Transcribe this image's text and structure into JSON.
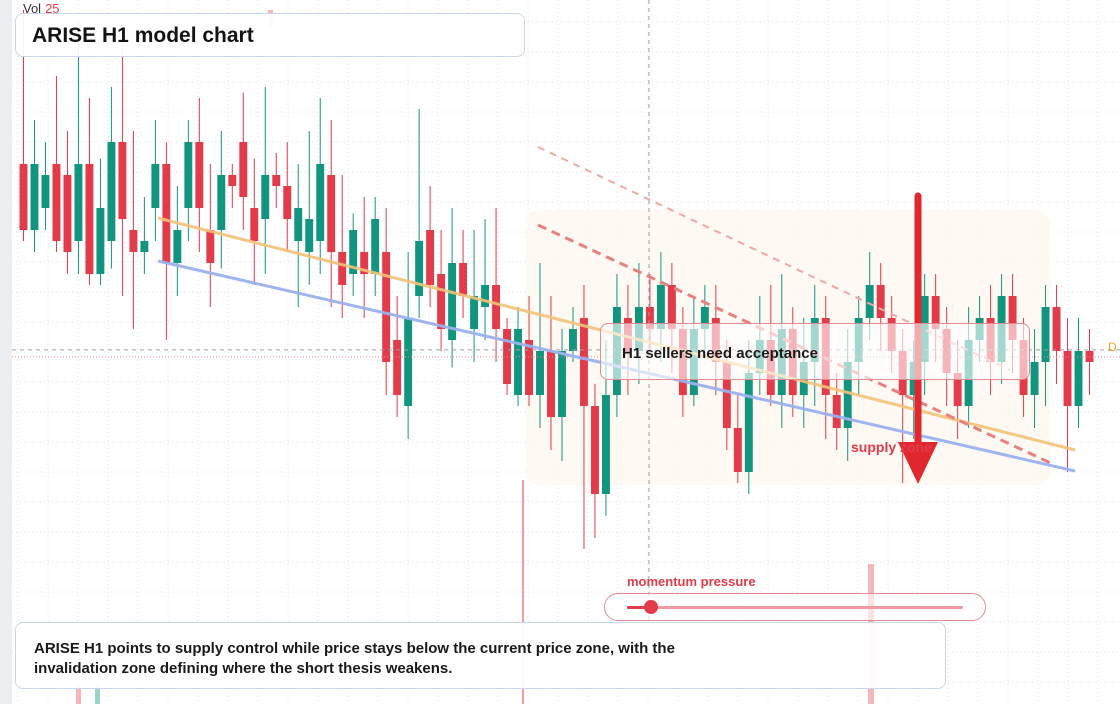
{
  "header": {
    "vol_label": "Vol",
    "vol_value": "25"
  },
  "title": "ARISE H1 model chart",
  "callout": {
    "text": "H1 sellers need acceptance"
  },
  "zone_label": "supply zone",
  "momentum": {
    "label": "momentum pressure",
    "level": 0.07
  },
  "summary": "ARISE H1 points to supply control while price stays below the current price zone, with the invalidation zone defining where the short thesis weakens.",
  "price_tag": "D",
  "colors": {
    "up": "#12957e",
    "down": "#e23b4a",
    "trend_orange": "#f4c27a",
    "trend_blue": "#9ab2ee",
    "arrow": "#e0262e",
    "grid": "#e3e6ec"
  },
  "chart_data": {
    "type": "candlestick",
    "y_range": [
      0,
      100
    ],
    "current_price_level": 38.2,
    "series": [
      {
        "o": 72,
        "c": 60,
        "h": 100,
        "l": 58
      },
      {
        "o": 60,
        "c": 72,
        "h": 80,
        "l": 56
      },
      {
        "o": 64,
        "c": 70,
        "h": 76,
        "l": 60
      },
      {
        "o": 72,
        "c": 58,
        "h": 88,
        "l": 56
      },
      {
        "o": 70,
        "c": 56,
        "h": 78,
        "l": 52
      },
      {
        "o": 58,
        "c": 72,
        "h": 98,
        "l": 52
      },
      {
        "o": 72,
        "c": 52,
        "h": 84,
        "l": 50
      },
      {
        "o": 52,
        "c": 64,
        "h": 73,
        "l": 50
      },
      {
        "o": 58,
        "c": 76,
        "h": 86,
        "l": 53
      },
      {
        "o": 76,
        "c": 62,
        "h": 94,
        "l": 48
      },
      {
        "o": 60,
        "c": 56,
        "h": 78,
        "l": 42
      },
      {
        "o": 56,
        "c": 58,
        "h": 66,
        "l": 52
      },
      {
        "o": 64,
        "c": 72,
        "h": 80,
        "l": 58
      },
      {
        "o": 72,
        "c": 54,
        "h": 76,
        "l": 40
      },
      {
        "o": 54,
        "c": 60,
        "h": 68,
        "l": 48
      },
      {
        "o": 64,
        "c": 76,
        "h": 80,
        "l": 58
      },
      {
        "o": 76,
        "c": 64,
        "h": 84,
        "l": 56
      },
      {
        "o": 60,
        "c": 54,
        "h": 72,
        "l": 46
      },
      {
        "o": 60,
        "c": 70,
        "h": 78,
        "l": 53
      },
      {
        "o": 70,
        "c": 68,
        "h": 72,
        "l": 64
      },
      {
        "o": 76,
        "c": 66,
        "h": 85,
        "l": 60
      },
      {
        "o": 64,
        "c": 58,
        "h": 73,
        "l": 50
      },
      {
        "o": 62,
        "c": 70,
        "h": 86,
        "l": 52
      },
      {
        "o": 70,
        "c": 68,
        "h": 74,
        "l": 64
      },
      {
        "o": 68,
        "c": 62,
        "h": 76,
        "l": 56
      },
      {
        "o": 58,
        "c": 64,
        "h": 72,
        "l": 46
      },
      {
        "o": 56,
        "c": 62,
        "h": 78,
        "l": 50
      },
      {
        "o": 58,
        "c": 72,
        "h": 84,
        "l": 52
      },
      {
        "o": 70,
        "c": 56,
        "h": 80,
        "l": 46
      },
      {
        "o": 56,
        "c": 50,
        "h": 70,
        "l": 44
      },
      {
        "o": 52,
        "c": 60,
        "h": 63,
        "l": 48
      },
      {
        "o": 56,
        "c": 52,
        "h": 66,
        "l": 44
      },
      {
        "o": 52,
        "c": 62,
        "h": 66,
        "l": 48
      },
      {
        "o": 56,
        "c": 36,
        "h": 64,
        "l": 30
      },
      {
        "o": 40,
        "c": 30,
        "h": 48,
        "l": 26
      },
      {
        "o": 28,
        "c": 44,
        "h": 56,
        "l": 22
      },
      {
        "o": 48,
        "c": 58,
        "h": 82,
        "l": 44
      },
      {
        "o": 60,
        "c": 50,
        "h": 68,
        "l": 46
      },
      {
        "o": 52,
        "c": 42,
        "h": 60,
        "l": 38
      },
      {
        "o": 40,
        "c": 54,
        "h": 64,
        "l": 35
      },
      {
        "o": 54,
        "c": 48,
        "h": 60,
        "l": 44
      },
      {
        "o": 42,
        "c": 48,
        "h": 60,
        "l": 36
      },
      {
        "o": 46,
        "c": 50,
        "h": 62,
        "l": 40
      },
      {
        "o": 50,
        "c": 42,
        "h": 64,
        "l": 36
      },
      {
        "o": 42,
        "c": 32,
        "h": 44,
        "l": 30
      },
      {
        "o": 30,
        "c": 42,
        "h": 46,
        "l": 28
      },
      {
        "o": 40,
        "c": 30,
        "h": 48,
        "l": 28
      },
      {
        "o": 30,
        "c": 38,
        "h": 54,
        "l": 24
      },
      {
        "o": 38,
        "c": 26,
        "h": 48,
        "l": 20
      },
      {
        "o": 26,
        "c": 38,
        "h": 42,
        "l": 18
      },
      {
        "o": 38,
        "c": 42,
        "h": 46,
        "l": 36
      },
      {
        "o": 44,
        "c": 28,
        "h": 50,
        "l": 2
      },
      {
        "o": 28,
        "c": 12,
        "h": 32,
        "l": 4
      },
      {
        "o": 12,
        "c": 30,
        "h": 40,
        "l": 8
      },
      {
        "o": 30,
        "c": 46,
        "h": 52,
        "l": 26
      },
      {
        "o": 44,
        "c": 38,
        "h": 50,
        "l": 30
      },
      {
        "o": 38,
        "c": 46,
        "h": 54,
        "l": 32
      },
      {
        "o": 46,
        "c": 42,
        "h": 52,
        "l": 38
      },
      {
        "o": 42,
        "c": 50,
        "h": 56,
        "l": 36
      },
      {
        "o": 50,
        "c": 42,
        "h": 54,
        "l": 34
      },
      {
        "o": 42,
        "c": 30,
        "h": 46,
        "l": 26
      },
      {
        "o": 30,
        "c": 42,
        "h": 48,
        "l": 28
      },
      {
        "o": 42,
        "c": 46,
        "h": 50,
        "l": 38
      },
      {
        "o": 44,
        "c": 36,
        "h": 50,
        "l": 30
      },
      {
        "o": 36,
        "c": 24,
        "h": 40,
        "l": 20
      },
      {
        "o": 24,
        "c": 16,
        "h": 30,
        "l": 14
      },
      {
        "o": 16,
        "c": 34,
        "h": 40,
        "l": 12
      },
      {
        "o": 34,
        "c": 40,
        "h": 48,
        "l": 30
      },
      {
        "o": 40,
        "c": 30,
        "h": 50,
        "l": 28
      },
      {
        "o": 30,
        "c": 42,
        "h": 52,
        "l": 24
      },
      {
        "o": 42,
        "c": 30,
        "h": 46,
        "l": 26
      },
      {
        "o": 30,
        "c": 36,
        "h": 44,
        "l": 24
      },
      {
        "o": 36,
        "c": 44,
        "h": 50,
        "l": 28
      },
      {
        "o": 44,
        "c": 30,
        "h": 48,
        "l": 22
      },
      {
        "o": 30,
        "c": 24,
        "h": 34,
        "l": 20
      },
      {
        "o": 24,
        "c": 36,
        "h": 42,
        "l": 18
      },
      {
        "o": 36,
        "c": 44,
        "h": 48,
        "l": 30
      },
      {
        "o": 44,
        "c": 50,
        "h": 56,
        "l": 40
      },
      {
        "o": 50,
        "c": 44,
        "h": 54,
        "l": 38
      },
      {
        "o": 44,
        "c": 38,
        "h": 48,
        "l": 34
      },
      {
        "o": 38,
        "c": 30,
        "h": 42,
        "l": 14
      },
      {
        "o": 30,
        "c": 36,
        "h": 40,
        "l": 22
      },
      {
        "o": 36,
        "c": 48,
        "h": 52,
        "l": 30
      },
      {
        "o": 48,
        "c": 42,
        "h": 52,
        "l": 36
      },
      {
        "o": 42,
        "c": 34,
        "h": 46,
        "l": 28
      },
      {
        "o": 34,
        "c": 28,
        "h": 40,
        "l": 22
      },
      {
        "o": 28,
        "c": 40,
        "h": 46,
        "l": 24
      },
      {
        "o": 40,
        "c": 44,
        "h": 48,
        "l": 36
      },
      {
        "o": 44,
        "c": 36,
        "h": 50,
        "l": 30
      },
      {
        "o": 36,
        "c": 48,
        "h": 52,
        "l": 32
      },
      {
        "o": 48,
        "c": 40,
        "h": 52,
        "l": 34
      },
      {
        "o": 40,
        "c": 30,
        "h": 44,
        "l": 26
      },
      {
        "o": 30,
        "c": 36,
        "h": 42,
        "l": 24
      },
      {
        "o": 36,
        "c": 46,
        "h": 50,
        "l": 28
      },
      {
        "o": 46,
        "c": 38,
        "h": 50,
        "l": 32
      },
      {
        "o": 38,
        "c": 28,
        "h": 44,
        "l": 16
      },
      {
        "o": 28,
        "c": 38,
        "h": 44,
        "l": 24
      },
      {
        "o": 38,
        "c": 36,
        "h": 42,
        "l": 30
      }
    ]
  }
}
